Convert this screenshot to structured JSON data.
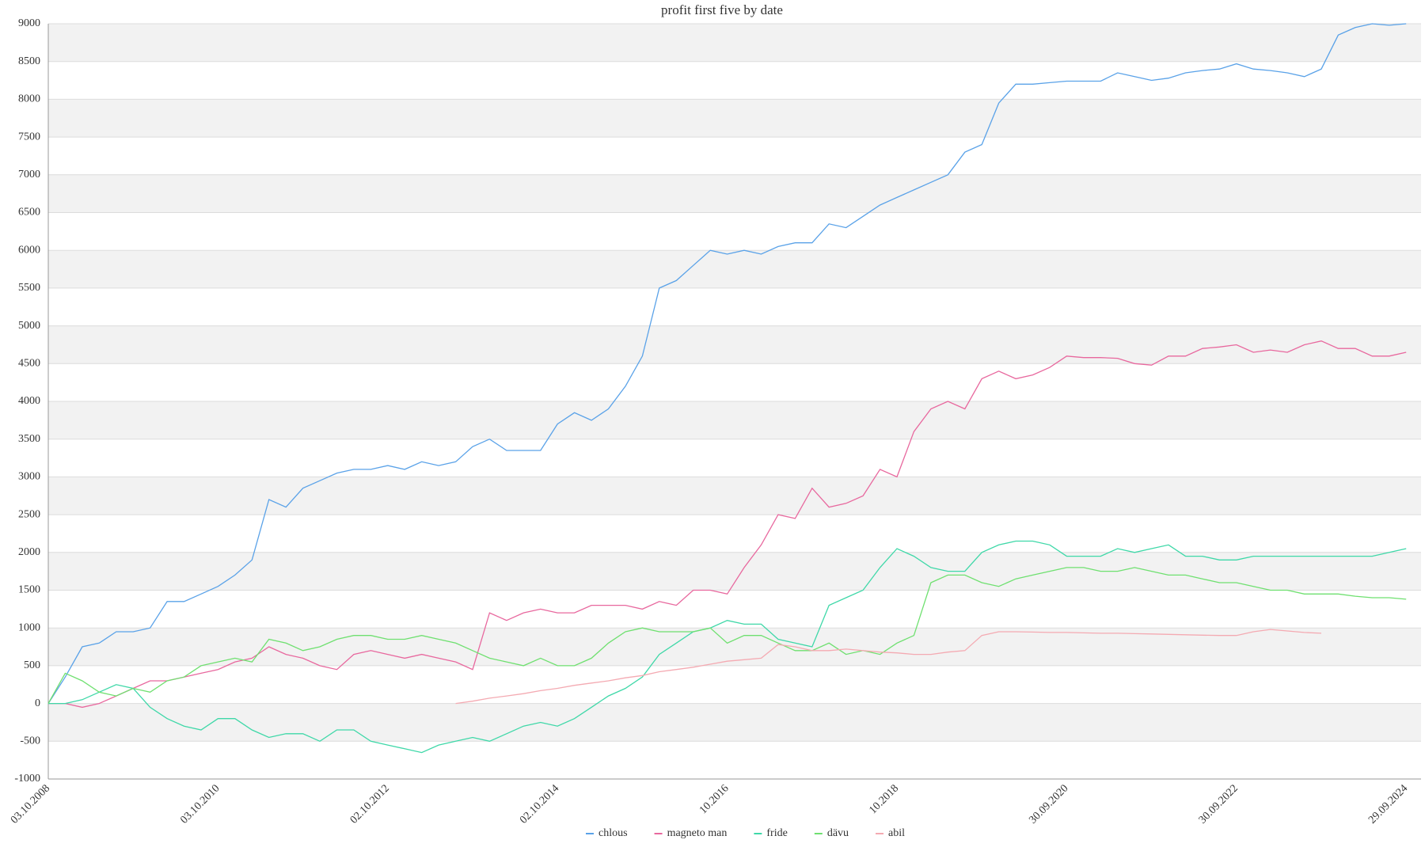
{
  "chart_data": {
    "type": "line",
    "title": "profit  first five by date",
    "categories": [
      "03.10.2008",
      null,
      null,
      null,
      null,
      null,
      null,
      null,
      null,
      null,
      "03.10.2010",
      null,
      null,
      null,
      null,
      null,
      null,
      null,
      null,
      null,
      "02.10.2012",
      null,
      null,
      null,
      null,
      null,
      null,
      null,
      null,
      null,
      "02.10.2014",
      null,
      null,
      null,
      null,
      null,
      null,
      null,
      null,
      null,
      "10.2016",
      null,
      null,
      null,
      null,
      null,
      null,
      null,
      null,
      null,
      "10.2018",
      null,
      null,
      null,
      null,
      null,
      null,
      null,
      null,
      null,
      "30.09.2020",
      null,
      null,
      null,
      null,
      null,
      null,
      null,
      null,
      null,
      "30.09.2022",
      null,
      null,
      null,
      null,
      null,
      null,
      null,
      null,
      null,
      "29.09.2024"
    ],
    "series": [
      {
        "name": "chlous",
        "color": "#5aa2e8",
        "values": [
          0,
          350,
          750,
          800,
          950,
          950,
          1000,
          1350,
          1350,
          1450,
          1550,
          1700,
          1900,
          2700,
          2600,
          2850,
          2950,
          3050,
          3100,
          3100,
          3150,
          3100,
          3200,
          3150,
          3200,
          3400,
          3500,
          3350,
          3350,
          3350,
          3700,
          3850,
          3750,
          3900,
          4200,
          4600,
          5500,
          5600,
          5800,
          6000,
          5950,
          6000,
          5950,
          6050,
          6100,
          6100,
          6350,
          6300,
          6450,
          6600,
          6700,
          6800,
          6900,
          7000,
          7300,
          7400,
          7950,
          8200,
          8200,
          8220,
          8240,
          8240,
          8240,
          8350,
          8300,
          8250,
          8280,
          8350,
          8380,
          8400,
          8470,
          8400,
          8380,
          8350,
          8300,
          8400,
          8850,
          8950,
          9000,
          8980,
          9000
        ]
      },
      {
        "name": "magneto man",
        "color": "#e8689e",
        "values": [
          0,
          0,
          -50,
          0,
          100,
          200,
          300,
          300,
          350,
          400,
          450,
          550,
          600,
          750,
          650,
          600,
          500,
          450,
          650,
          700,
          650,
          600,
          650,
          600,
          550,
          450,
          1200,
          1100,
          1200,
          1250,
          1200,
          1200,
          1300,
          1300,
          1300,
          1250,
          1350,
          1300,
          1500,
          1500,
          1450,
          1800,
          2100,
          2500,
          2450,
          2850,
          2600,
          2650,
          2750,
          3100,
          3000,
          3600,
          3900,
          4000,
          3900,
          4300,
          4400,
          4300,
          4350,
          4450,
          4600,
          4580,
          4580,
          4570,
          4500,
          4480,
          4600,
          4600,
          4700,
          4720,
          4750,
          4650,
          4680,
          4650,
          4750,
          4800,
          4700,
          4700,
          4600,
          4600,
          4650
        ]
      },
      {
        "name": "fride",
        "color": "#3fd8a8",
        "values": [
          0,
          0,
          50,
          150,
          250,
          200,
          -50,
          -200,
          -300,
          -350,
          -200,
          -200,
          -350,
          -450,
          -400,
          -400,
          -500,
          -350,
          -350,
          -500,
          -550,
          -600,
          -650,
          -550,
          -500,
          -450,
          -500,
          -400,
          -300,
          -250,
          -300,
          -200,
          -50,
          100,
          200,
          350,
          650,
          800,
          950,
          1000,
          1100,
          1050,
          1050,
          850,
          800,
          750,
          1300,
          1400,
          1500,
          1800,
          2050,
          1950,
          1800,
          1750,
          1750,
          2000,
          2100,
          2150,
          2150,
          2100,
          1950,
          1950,
          1950,
          2050,
          2000,
          2050,
          2100,
          1950,
          1950,
          1900,
          1900,
          1950,
          1950,
          1950,
          1950,
          1950,
          1950,
          1950,
          1950,
          2000,
          2050
        ]
      },
      {
        "name": "dävu",
        "color": "#6fe070",
        "values": [
          0,
          400,
          300,
          150,
          100,
          200,
          150,
          300,
          350,
          500,
          550,
          600,
          550,
          850,
          800,
          700,
          750,
          850,
          900,
          900,
          850,
          850,
          900,
          850,
          800,
          700,
          600,
          550,
          500,
          600,
          500,
          500,
          600,
          800,
          950,
          1000,
          950,
          950,
          950,
          1000,
          800,
          900,
          900,
          800,
          700,
          700,
          800,
          650,
          700,
          650,
          800,
          900,
          1600,
          1700,
          1700,
          1600,
          1550,
          1650,
          1700,
          1750,
          1800,
          1800,
          1750,
          1750,
          1800,
          1750,
          1700,
          1700,
          1650,
          1600,
          1600,
          1550,
          1500,
          1500,
          1450,
          1450,
          1450,
          1420,
          1400,
          1400,
          1380
        ]
      },
      {
        "name": "abil",
        "color": "#f4aab2",
        "values": [
          null,
          null,
          null,
          null,
          null,
          null,
          null,
          null,
          null,
          null,
          null,
          null,
          null,
          null,
          null,
          null,
          null,
          null,
          null,
          null,
          null,
          null,
          null,
          null,
          0,
          30,
          70,
          100,
          130,
          170,
          200,
          240,
          270,
          300,
          340,
          370,
          420,
          450,
          480,
          520,
          560,
          580,
          600,
          780,
          750,
          700,
          700,
          720,
          700,
          680,
          670,
          650,
          650,
          680,
          700,
          900,
          950,
          950,
          945,
          940,
          940,
          935,
          930,
          930,
          925,
          920,
          915,
          910,
          905,
          900,
          900,
          950,
          980,
          960,
          940,
          930,
          null,
          null,
          null,
          null,
          null
        ]
      }
    ],
    "ylim": [
      -1000,
      9000
    ],
    "yticks": [
      -1000,
      -500,
      0,
      500,
      1000,
      1500,
      2000,
      2500,
      3000,
      3500,
      4000,
      4500,
      5000,
      5500,
      6000,
      6500,
      7000,
      7500,
      8000,
      8500,
      9000
    ],
    "grid": true,
    "legend": "bottom"
  }
}
